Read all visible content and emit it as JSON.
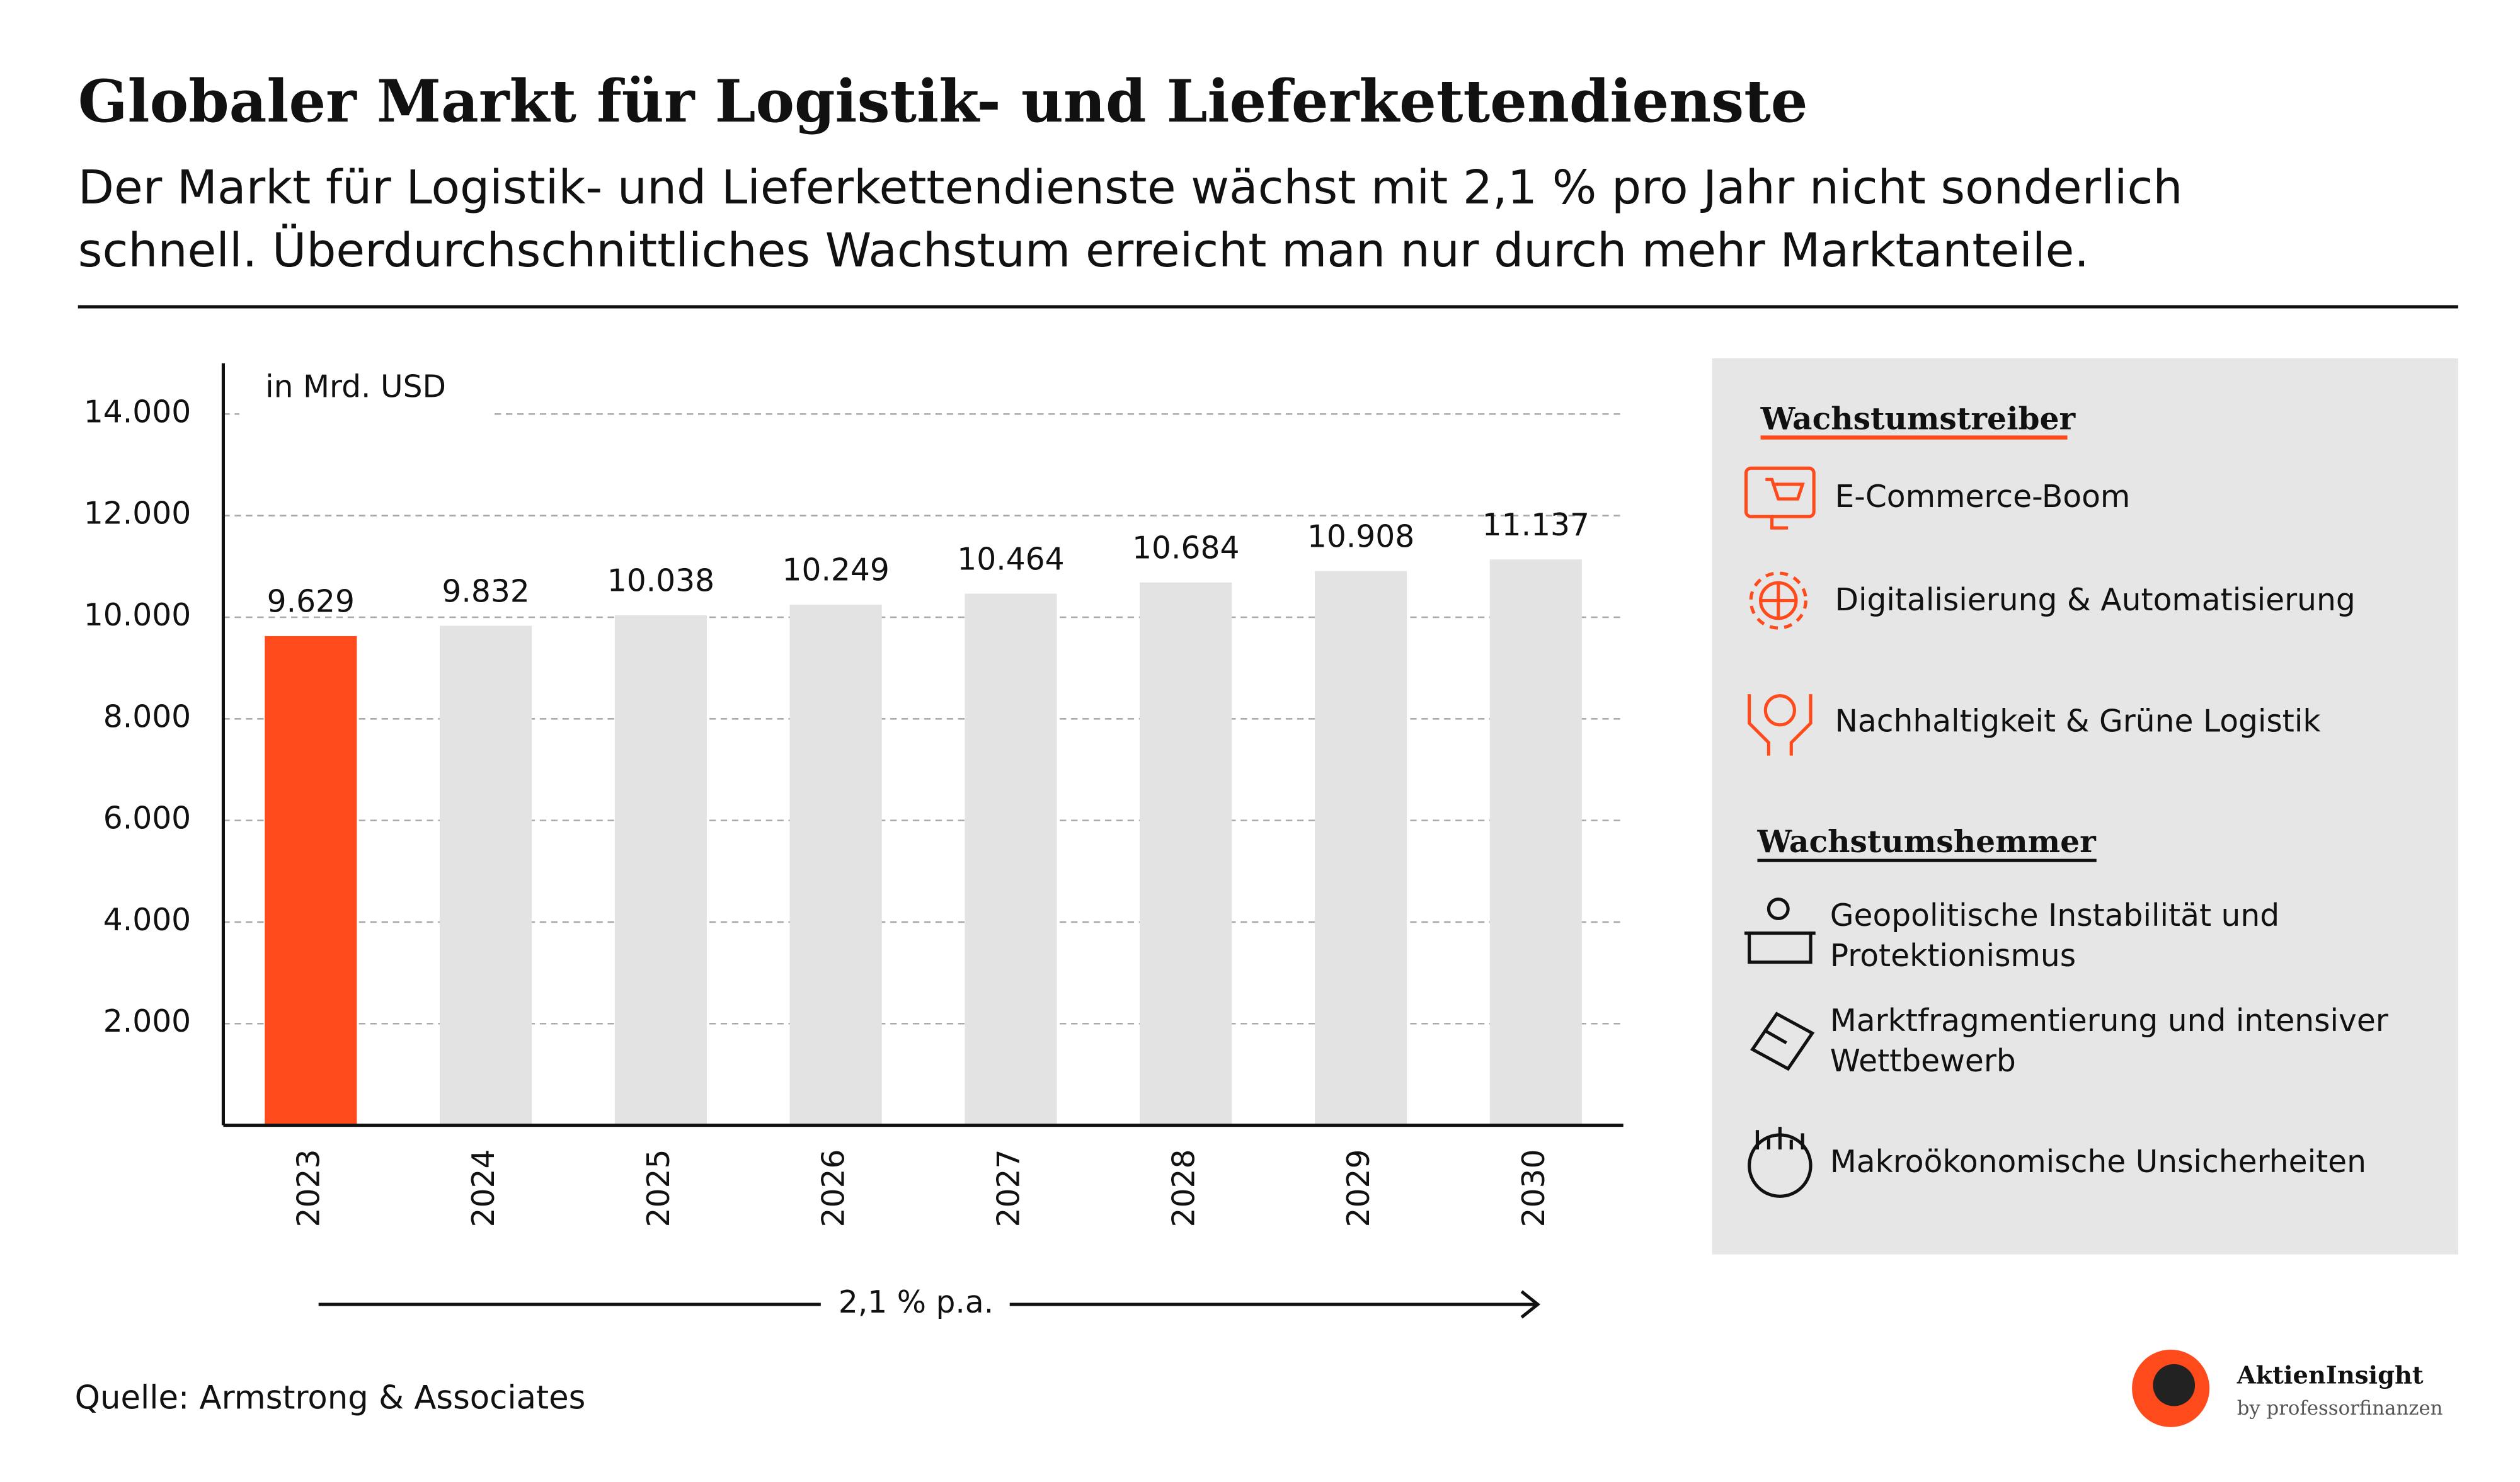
{
  "chart_data": {
    "type": "bar",
    "title": "Globaler Markt für Logistik- und Lieferkettendienste",
    "subtitle": [
      "Der Markt für Logistik- und Lieferkettendienste wächst mit 2,1 % pro Jahr nicht sonderlich",
      "schnell. Überdurchschnittliches Wachstum erreicht man nur durch mehr Marktanteile."
    ],
    "y_label": "in Mrd. USD",
    "categories": [
      "2023",
      "2024",
      "2025",
      "2026",
      "2027",
      "2028",
      "2029",
      "2030"
    ],
    "values": [
      9629,
      9832,
      10038,
      10249,
      10464,
      10684,
      10908,
      11137
    ],
    "value_labels": [
      "9.629",
      "9.832",
      "10.038",
      "10.249",
      "10.464",
      "10.684",
      "10.908",
      "11.137"
    ],
    "colors": [
      "#ff4a1c",
      "#e3e3e3",
      "#e3e3e3",
      "#e3e3e3",
      "#e3e3e3",
      "#e3e3e3",
      "#e3e3e3",
      "#e3e3e3"
    ],
    "ylim": [
      0,
      15000
    ],
    "yticks": [
      {
        "value": 2000,
        "label": "2.000"
      },
      {
        "value": 4000,
        "label": "4.000"
      },
      {
        "value": 6000,
        "label": "6.000"
      },
      {
        "value": 8000,
        "label": "8.000"
      },
      {
        "value": 10000,
        "label": "10.000"
      },
      {
        "value": 12000,
        "label": "12.000"
      },
      {
        "value": 14000,
        "label": "14.000"
      }
    ],
    "grid": true,
    "growth_annotation": "2,1 % p.a.",
    "source": "Quelle: Armstrong & Associates"
  },
  "sidebar": {
    "drivers_heading": "Wachstumstreiber",
    "drivers": [
      {
        "lines": [
          "E-Commerce-Boom"
        ]
      },
      {
        "lines": [
          "Digitalisierung & Automatisierung"
        ]
      },
      {
        "lines": [
          "Nachhaltigkeit & Grüne Logistik"
        ]
      }
    ],
    "inhibitors_heading": "Wachstumshemmer",
    "inhibitors": [
      {
        "lines": [
          "Geopolitische Instabilität und",
          "Protektionismus"
        ]
      },
      {
        "lines": [
          "Marktfragmentierung und intensiver",
          "Wettbewerb"
        ]
      },
      {
        "lines": [
          "Makroökonomische Unsicherheiten"
        ]
      }
    ]
  },
  "brand": {
    "name": "AktienInsight",
    "tagline": "by professorfinanzen"
  }
}
